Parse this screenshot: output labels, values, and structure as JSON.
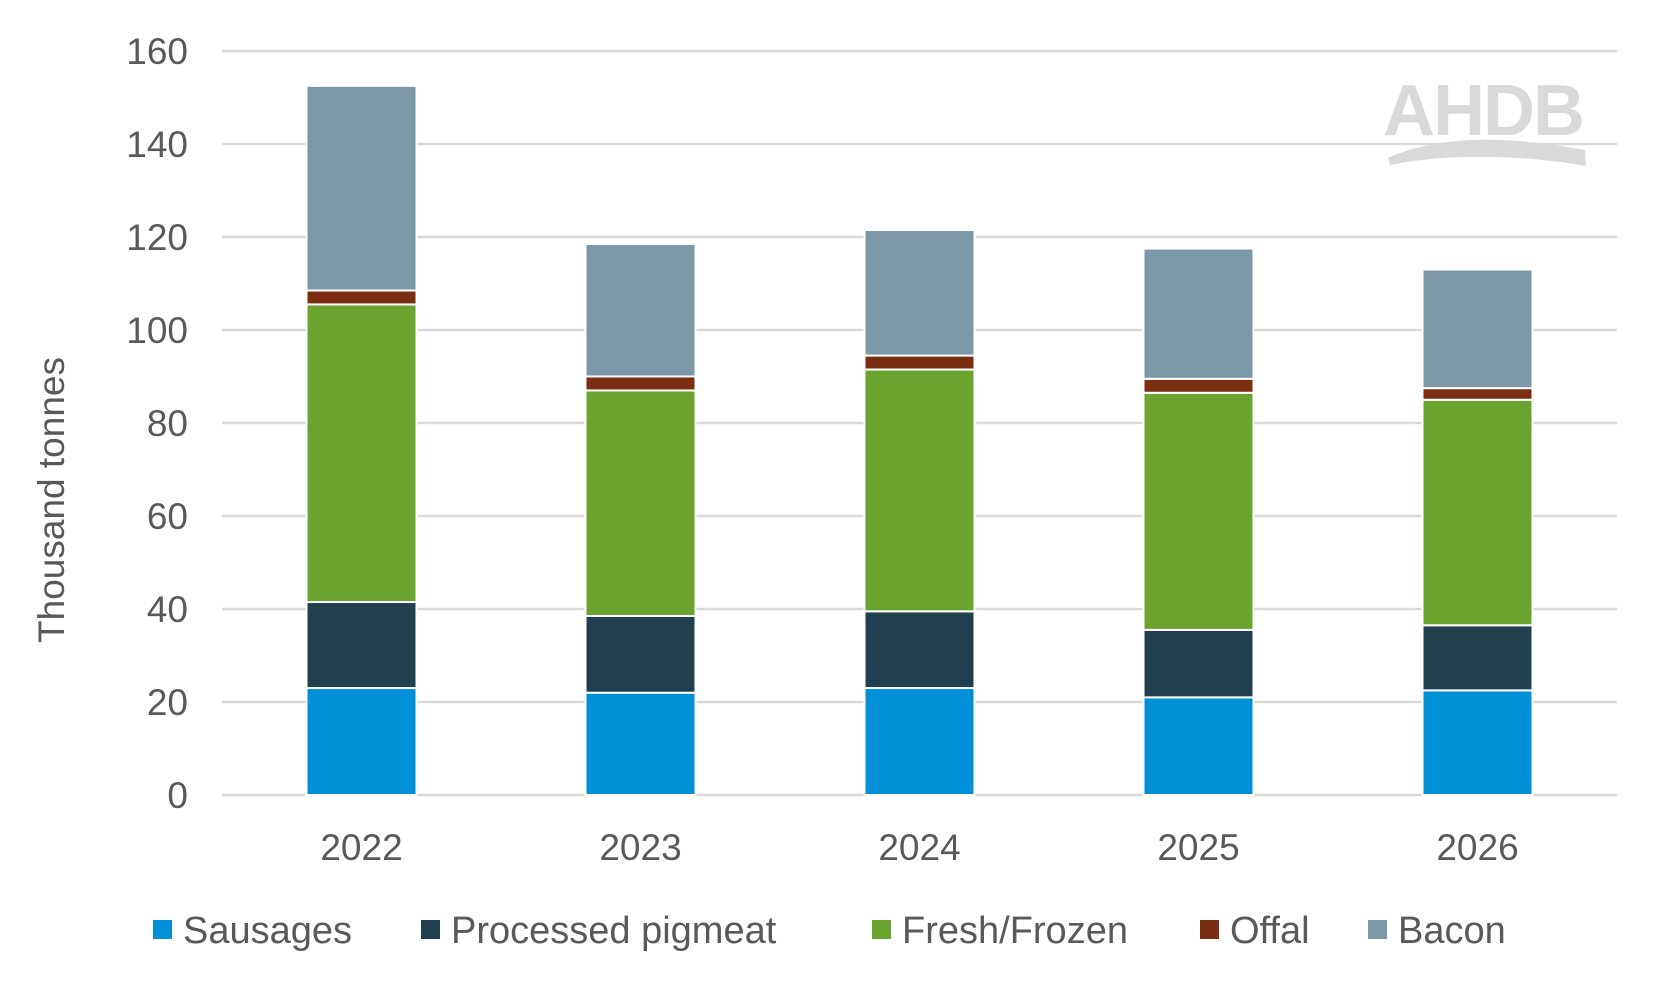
{
  "chart_data": {
    "type": "bar",
    "stacked": true,
    "categories": [
      "2022",
      "2023",
      "2024",
      "2025",
      "2026"
    ],
    "series": [
      {
        "name": "Sausages",
        "color": "#0090d8",
        "values": [
          23,
          22,
          23,
          21,
          22.5
        ]
      },
      {
        "name": "Processed pigmeat",
        "color": "#20404f",
        "values": [
          18.5,
          16.5,
          16.5,
          14.5,
          14
        ]
      },
      {
        "name": "Fresh/Frozen",
        "color": "#6ba32f",
        "values": [
          64,
          48.5,
          52,
          51,
          48.5
        ]
      },
      {
        "name": "Offal",
        "color": "#7b2e12",
        "values": [
          3,
          3,
          3,
          3,
          2.5
        ]
      },
      {
        "name": "Bacon",
        "color": "#7a98a6",
        "values": [
          44,
          28.5,
          27,
          28,
          25.5
        ]
      }
    ],
    "ylabel": "Thousand tonnes",
    "xlabel": "",
    "ylim": [
      0,
      160
    ],
    "yticks": [
      "0",
      "20",
      "40",
      "60",
      "80",
      "100",
      "120",
      "140",
      "160"
    ],
    "grid": true,
    "legend_position": "bottom"
  },
  "logo": {
    "text": "AHDB",
    "color": "#d9d9d9"
  }
}
